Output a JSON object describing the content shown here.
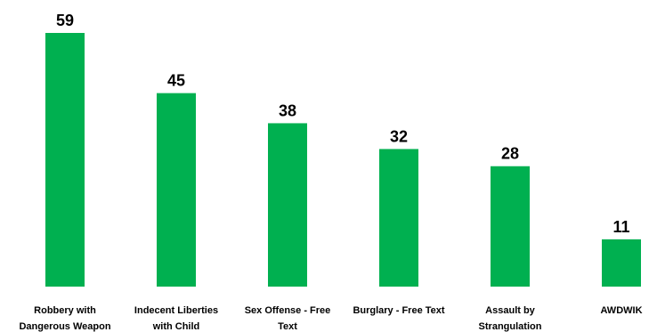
{
  "chart_data": {
    "type": "bar",
    "categories": [
      [
        "Robbery with",
        "Dangerous Weapon"
      ],
      [
        "Indecent Liberties",
        "with Child"
      ],
      [
        "Sex Offense - Free",
        "Text"
      ],
      [
        "Burglary - Free Text"
      ],
      [
        "Assault by",
        "Strangulation"
      ],
      [
        "AWDWIK"
      ]
    ],
    "values": [
      59,
      45,
      38,
      32,
      28,
      11
    ],
    "title": "",
    "xlabel": "",
    "ylabel": "",
    "ylim": [
      0,
      59
    ],
    "grid": false,
    "legend": "none",
    "data_labels": true,
    "bar_color": "#00b050",
    "label_color": "#000000"
  }
}
